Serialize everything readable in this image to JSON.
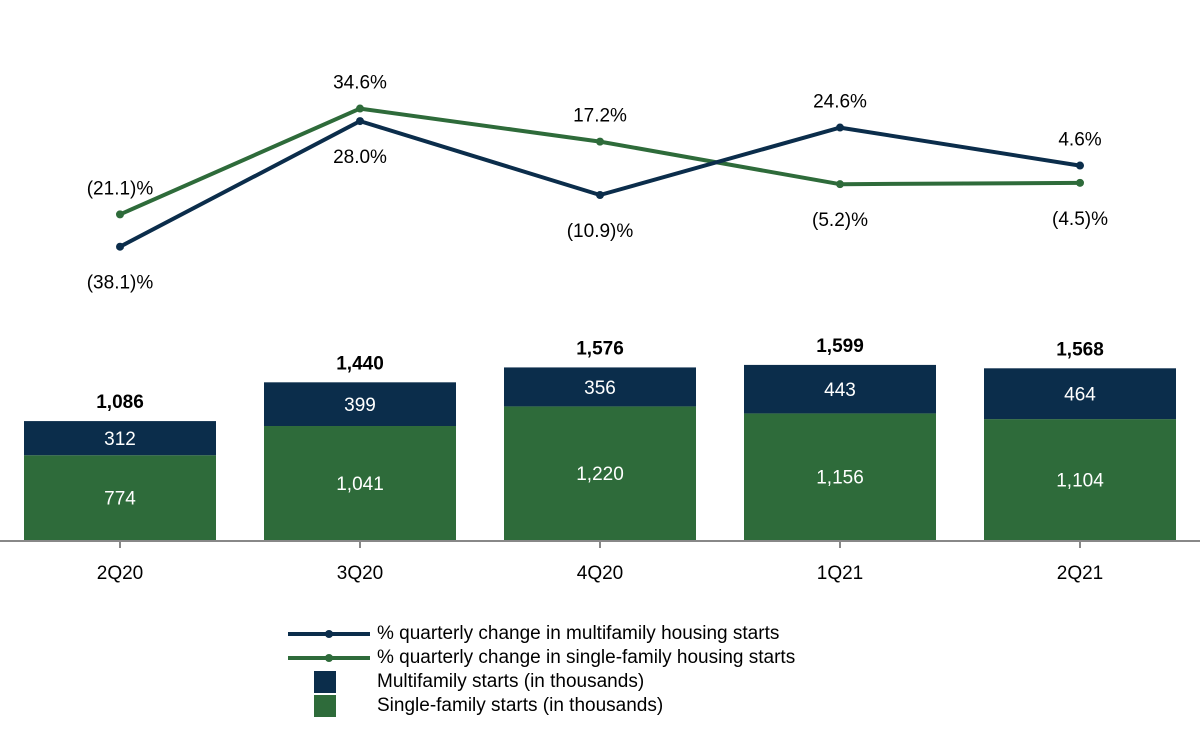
{
  "colors": {
    "multifamily": "#0b2d4b",
    "single_family": "#2e6b3a",
    "axis": "#888888"
  },
  "chart_data": {
    "type": "bar",
    "stacked": true,
    "categories": [
      "2Q20",
      "3Q20",
      "4Q20",
      "1Q21",
      "2Q21"
    ],
    "bar_series": [
      {
        "name": "Single-family starts (in thousands)",
        "values": [
          774,
          1041,
          1220,
          1156,
          1104
        ],
        "labels": [
          "774",
          "1,041",
          "1,220",
          "1,156",
          "1,104"
        ]
      },
      {
        "name": "Multifamily starts (in thousands)",
        "values": [
          312,
          399,
          356,
          443,
          464
        ],
        "labels": [
          "312",
          "399",
          "356",
          "443",
          "464"
        ]
      }
    ],
    "totals": [
      1086,
      1440,
      1576,
      1599,
      1568
    ],
    "total_labels": [
      "1,086",
      "1,440",
      "1,576",
      "1,599",
      "1,568"
    ],
    "line_series": [
      {
        "name": "% quarterly change in multifamily housing starts",
        "values": [
          -38.1,
          28.0,
          -10.9,
          24.6,
          4.6
        ],
        "labels": [
          "(38.1)%",
          "28.0%",
          "(10.9)%",
          "24.6%",
          "4.6%"
        ]
      },
      {
        "name": "% quarterly change in single-family housing starts",
        "values": [
          -21.1,
          34.6,
          17.2,
          -5.2,
          -4.5
        ],
        "labels": [
          "(21.1)%",
          "34.6%",
          "17.2%",
          "(5.2)%",
          "(4.5)%"
        ]
      }
    ],
    "legend_position": "bottom-center",
    "grid": false
  },
  "legend": [
    {
      "type": "line",
      "color_key": "multifamily",
      "label": "% quarterly change in multifamily housing starts"
    },
    {
      "type": "line",
      "color_key": "single_family",
      "label": "% quarterly change in single-family housing starts"
    },
    {
      "type": "box",
      "color_key": "multifamily",
      "label": "Multifamily starts (in thousands)"
    },
    {
      "type": "box",
      "color_key": "single_family",
      "label": "Single-family starts (in thousands)"
    }
  ]
}
